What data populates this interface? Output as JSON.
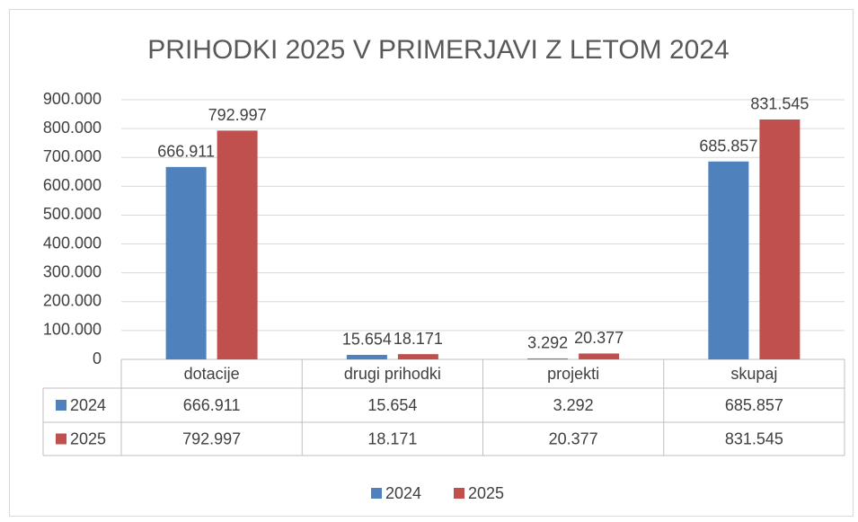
{
  "chart_data": {
    "type": "bar",
    "title": "PRIHODKI 2025 V PRIMERJAVI Z LETOM 2024",
    "categories": [
      "dotacije",
      "drugi prihodki",
      "projekti",
      "skupaj"
    ],
    "series": [
      {
        "name": "2024",
        "color": "#4f81bd",
        "values": [
          666911,
          15654,
          3292,
          685857
        ],
        "value_labels": [
          "666.911",
          "15.654",
          "3.292",
          "685.857"
        ]
      },
      {
        "name": "2025",
        "color": "#c0504d",
        "values": [
          792997,
          18171,
          20377,
          831545
        ],
        "value_labels": [
          "792.997",
          "18.171",
          "20.377",
          "831.545"
        ]
      }
    ],
    "ylim": [
      0,
      900000
    ],
    "yticks": [
      0,
      {
        "value": 100000,
        "label": "100.000"
      },
      {
        "value": 200000,
        "label": "200.000"
      },
      {
        "value": 300000,
        "label": "300.000"
      },
      {
        "value": 400000,
        "label": "400.000"
      },
      {
        "value": 500000,
        "label": "500.000"
      },
      {
        "value": 600000,
        "label": "600.000"
      },
      {
        "value": 700000,
        "label": "700.000"
      },
      {
        "value": 800000,
        "label": "800.000"
      },
      {
        "value": 900000,
        "label": "900.000"
      }
    ],
    "grid": true,
    "legend": "bottom"
  }
}
